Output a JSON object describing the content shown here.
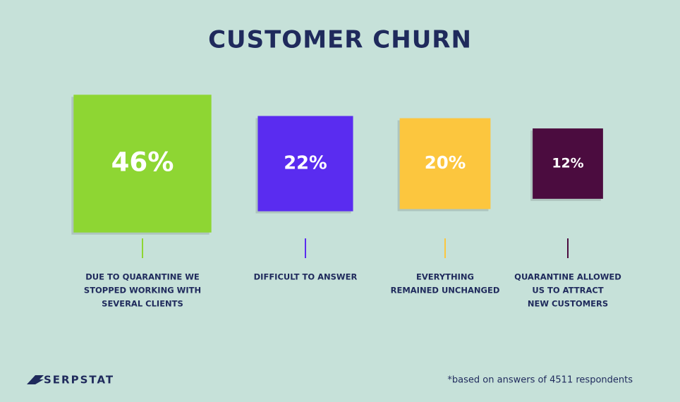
{
  "chart_data": {
    "type": "square",
    "title": "CUSTOMER  CHURN",
    "categories": [
      [
        "DUE TO QUARANTINE WE",
        "STOPPED WORKING WITH",
        "SEVERAL CLIENTS"
      ],
      [
        "DIFFICULT TO ANSWER"
      ],
      [
        "EVERYTHING",
        "REMAINED UNCHANGED"
      ],
      [
        "QUARANTINE ALLOWED",
        "US TO ATTRACT",
        "NEW CUSTOMERS"
      ]
    ],
    "values": [
      46,
      22,
      20,
      12
    ],
    "value_labels": [
      "46%",
      "22%",
      "20%",
      "12%"
    ],
    "colors": [
      "#8ed633",
      "#5a2cf0",
      "#fcc63e",
      "#4b0c3f"
    ],
    "note": "*based on answers of 4511 respondents",
    "brand": "SERPSTAT"
  }
}
